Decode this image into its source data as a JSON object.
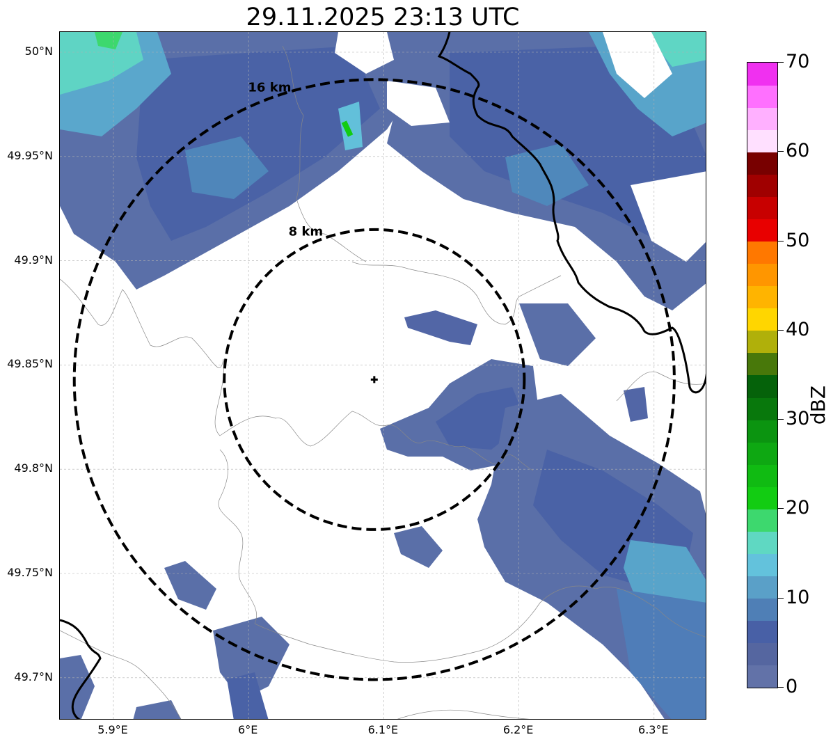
{
  "title": "29.11.2025 23:13 UTC",
  "map": {
    "lon_range": [
      5.86,
      6.34
    ],
    "lat_range": [
      49.68,
      50.01
    ],
    "lat_ticks": [
      {
        "value": 50.0,
        "label": "50°N"
      },
      {
        "value": 49.95,
        "label": "49.95°N"
      },
      {
        "value": 49.9,
        "label": "49.9°N"
      },
      {
        "value": 49.85,
        "label": "49.85°N"
      },
      {
        "value": 49.8,
        "label": "49.8°N"
      },
      {
        "value": 49.75,
        "label": "49.75°N"
      },
      {
        "value": 49.7,
        "label": "49.7°N"
      }
    ],
    "lon_ticks": [
      {
        "value": 5.9,
        "label": "5.9°E"
      },
      {
        "value": 6.0,
        "label": "6°E"
      },
      {
        "value": 6.1,
        "label": "6.1°E"
      },
      {
        "value": 6.2,
        "label": "6.2°E"
      },
      {
        "value": 6.3,
        "label": "6.3°E"
      }
    ],
    "radar_site": {
      "lon": 6.093,
      "lat": 49.843
    },
    "range_rings": [
      {
        "radius_km": 8,
        "label": "8 km"
      },
      {
        "radius_km": 16,
        "label": "16 km"
      }
    ],
    "gridlines": true
  },
  "colorbar": {
    "unit_label": "dBZ",
    "min": 0,
    "max": 70,
    "ticks": [
      "0",
      "10",
      "20",
      "30",
      "40",
      "50",
      "60",
      "70"
    ],
    "bins": [
      {
        "from": 0,
        "to": 2.5,
        "color": "#6272a8"
      },
      {
        "from": 2.5,
        "to": 5,
        "color": "#5566a0"
      },
      {
        "from": 5,
        "to": 7.5,
        "color": "#4860a6"
      },
      {
        "from": 7.5,
        "to": 10,
        "color": "#4f7fb6"
      },
      {
        "from": 10,
        "to": 12.5,
        "color": "#5aa0c8"
      },
      {
        "from": 12.5,
        "to": 15,
        "color": "#63c2dc"
      },
      {
        "from": 15,
        "to": 17.5,
        "color": "#5fd8c2"
      },
      {
        "from": 17.5,
        "to": 20,
        "color": "#3dd86e"
      },
      {
        "from": 20,
        "to": 22.5,
        "color": "#12cc12"
      },
      {
        "from": 22.5,
        "to": 25,
        "color": "#10bb12"
      },
      {
        "from": 25,
        "to": 27.5,
        "color": "#0ea812"
      },
      {
        "from": 27.5,
        "to": 30,
        "color": "#0b9410"
      },
      {
        "from": 30,
        "to": 32.5,
        "color": "#08780c"
      },
      {
        "from": 32.5,
        "to": 35,
        "color": "#05620a"
      },
      {
        "from": 35,
        "to": 37.5,
        "color": "#48780a"
      },
      {
        "from": 37.5,
        "to": 40,
        "color": "#b0b00a"
      },
      {
        "from": 40,
        "to": 42.5,
        "color": "#ffd600"
      },
      {
        "from": 42.5,
        "to": 45,
        "color": "#ffb400"
      },
      {
        "from": 45,
        "to": 47.5,
        "color": "#ff9600"
      },
      {
        "from": 47.5,
        "to": 50,
        "color": "#ff7800"
      },
      {
        "from": 50,
        "to": 52.5,
        "color": "#e80000"
      },
      {
        "from": 52.5,
        "to": 55,
        "color": "#c80000"
      },
      {
        "from": 55,
        "to": 57.5,
        "color": "#a00000"
      },
      {
        "from": 57.5,
        "to": 60,
        "color": "#780000"
      },
      {
        "from": 60,
        "to": 62.5,
        "color": "#ffe0ff"
      },
      {
        "from": 62.5,
        "to": 65,
        "color": "#ffb0ff"
      },
      {
        "from": 65,
        "to": 67.5,
        "color": "#ff70ff"
      },
      {
        "from": 67.5,
        "to": 70,
        "color": "#f030f0"
      }
    ]
  }
}
